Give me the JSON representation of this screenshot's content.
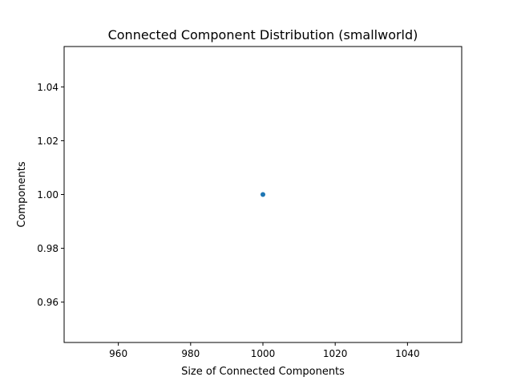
{
  "chart_data": {
    "type": "scatter",
    "title": "Connected Component Distribution (smallworld)",
    "xlabel": "Size of Connected Components",
    "ylabel": "Components",
    "xlim": [
      945,
      1055
    ],
    "ylim": [
      0.945,
      1.055
    ],
    "xticks": [
      960,
      980,
      1000,
      1020,
      1040
    ],
    "xtick_labels": [
      "960",
      "980",
      "1000",
      "1020",
      "1040"
    ],
    "yticks": [
      0.96,
      0.98,
      1.0,
      1.02,
      1.04
    ],
    "ytick_labels": [
      "0.96",
      "0.98",
      "1.00",
      "1.02",
      "1.04"
    ],
    "grid": false,
    "series": [
      {
        "x": [
          1000
        ],
        "y": [
          1.0
        ],
        "color": "#1f77b4"
      }
    ]
  }
}
